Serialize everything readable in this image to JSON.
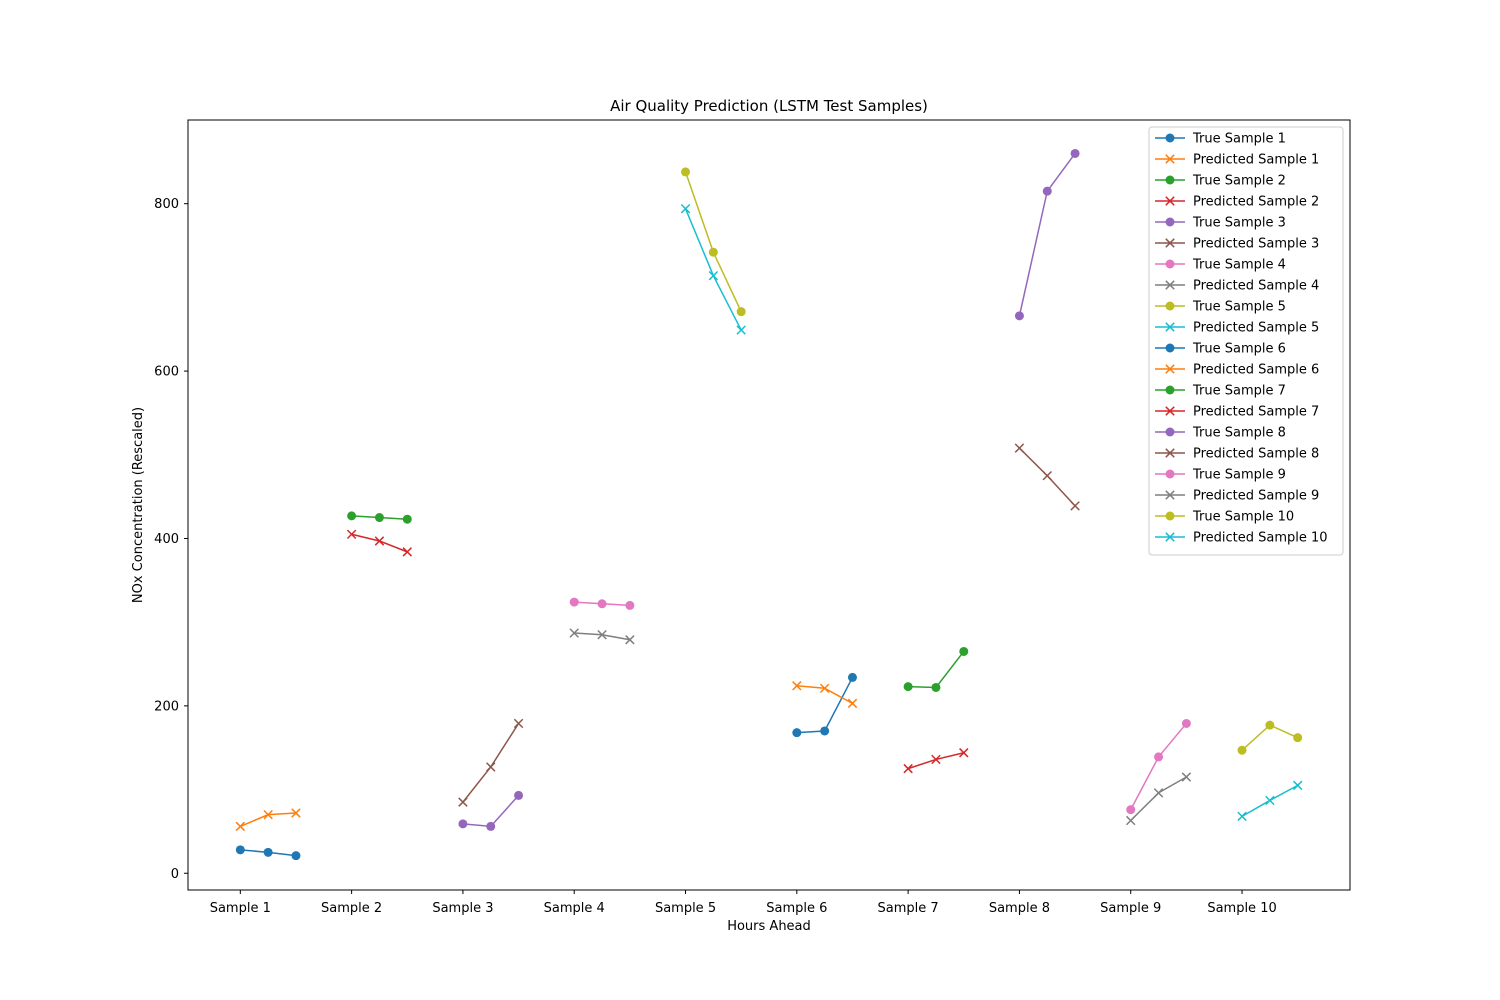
{
  "chart_data": {
    "type": "line",
    "title": "Air Quality Prediction (LSTM Test Samples)",
    "xlabel": "Hours Ahead",
    "ylabel": "NOx Concentration (Rescaled)",
    "categories": [
      "Sample 1",
      "Sample 2",
      "Sample 3",
      "Sample 4",
      "Sample 5",
      "Sample 6",
      "Sample 7",
      "Sample 8",
      "Sample 9",
      "Sample 10"
    ],
    "x_offsets": [
      0,
      0.25,
      0.5
    ],
    "xlim": [
      -0.47,
      9.97
    ],
    "ylim": [
      -20,
      900
    ],
    "yticks": [
      0,
      200,
      400,
      600,
      800
    ],
    "grid": false,
    "legend_position": "top-right",
    "series": [
      {
        "name": "True Sample 1",
        "kind": "true",
        "marker": "circle",
        "color": "#1f77b4",
        "x": [
          0,
          0.25,
          0.5
        ],
        "values": [
          28,
          25,
          21
        ]
      },
      {
        "name": "Predicted Sample 1",
        "kind": "predicted",
        "marker": "x",
        "color": "#ff7f0e",
        "x": [
          0,
          0.25,
          0.5
        ],
        "values": [
          56,
          70,
          72
        ]
      },
      {
        "name": "True Sample 2",
        "kind": "true",
        "marker": "circle",
        "color": "#2ca02c",
        "x": [
          1,
          1.25,
          1.5
        ],
        "values": [
          427,
          425,
          423
        ]
      },
      {
        "name": "Predicted Sample 2",
        "kind": "predicted",
        "marker": "x",
        "color": "#d62728",
        "x": [
          1,
          1.25,
          1.5
        ],
        "values": [
          405,
          397,
          384
        ]
      },
      {
        "name": "True Sample 3",
        "kind": "true",
        "marker": "circle",
        "color": "#9467bd",
        "x": [
          2,
          2.25,
          2.5
        ],
        "values": [
          59,
          56,
          93
        ]
      },
      {
        "name": "Predicted Sample 3",
        "kind": "predicted",
        "marker": "x",
        "color": "#8c564b",
        "x": [
          2,
          2.25,
          2.5
        ],
        "values": [
          85,
          127,
          179
        ]
      },
      {
        "name": "True Sample 4",
        "kind": "true",
        "marker": "circle",
        "color": "#e377c2",
        "x": [
          3,
          3.25,
          3.5
        ],
        "values": [
          324,
          322,
          320
        ]
      },
      {
        "name": "Predicted Sample 4",
        "kind": "predicted",
        "marker": "x",
        "color": "#7f7f7f",
        "x": [
          3,
          3.25,
          3.5
        ],
        "values": [
          287,
          285,
          279
        ]
      },
      {
        "name": "True Sample 5",
        "kind": "true",
        "marker": "circle",
        "color": "#bcbd22",
        "x": [
          4,
          4.25,
          4.5
        ],
        "values": [
          838,
          742,
          671
        ]
      },
      {
        "name": "Predicted Sample 5",
        "kind": "predicted",
        "marker": "x",
        "color": "#17becf",
        "x": [
          4,
          4.25,
          4.5
        ],
        "values": [
          794,
          714,
          649
        ]
      },
      {
        "name": "True Sample 6",
        "kind": "true",
        "marker": "circle",
        "color": "#1f77b4",
        "x": [
          5,
          5.25,
          5.5
        ],
        "values": [
          168,
          170,
          234
        ]
      },
      {
        "name": "Predicted Sample 6",
        "kind": "predicted",
        "marker": "x",
        "color": "#ff7f0e",
        "x": [
          5,
          5.25,
          5.5
        ],
        "values": [
          224,
          221,
          203
        ]
      },
      {
        "name": "True Sample 7",
        "kind": "true",
        "marker": "circle",
        "color": "#2ca02c",
        "x": [
          6,
          6.25,
          6.5
        ],
        "values": [
          223,
          222,
          265
        ]
      },
      {
        "name": "Predicted Sample 7",
        "kind": "predicted",
        "marker": "x",
        "color": "#d62728",
        "x": [
          6,
          6.25,
          6.5
        ],
        "values": [
          125,
          136,
          144
        ]
      },
      {
        "name": "True Sample 8",
        "kind": "true",
        "marker": "circle",
        "color": "#9467bd",
        "x": [
          7,
          7.25,
          7.5
        ],
        "values": [
          666,
          815,
          860
        ]
      },
      {
        "name": "Predicted Sample 8",
        "kind": "predicted",
        "marker": "x",
        "color": "#8c564b",
        "x": [
          7,
          7.25,
          7.5
        ],
        "values": [
          508,
          475,
          439
        ]
      },
      {
        "name": "True Sample 9",
        "kind": "true",
        "marker": "circle",
        "color": "#e377c2",
        "x": [
          8,
          8.25,
          8.5
        ],
        "values": [
          76,
          139,
          179
        ]
      },
      {
        "name": "Predicted Sample 9",
        "kind": "predicted",
        "marker": "x",
        "color": "#7f7f7f",
        "x": [
          8,
          8.25,
          8.5
        ],
        "values": [
          63,
          96,
          115
        ]
      },
      {
        "name": "True Sample 10",
        "kind": "true",
        "marker": "circle",
        "color": "#bcbd22",
        "x": [
          9,
          9.25,
          9.5
        ],
        "values": [
          147,
          177,
          162
        ]
      },
      {
        "name": "Predicted Sample 10",
        "kind": "predicted",
        "marker": "x",
        "color": "#17becf",
        "x": [
          9,
          9.25,
          9.5
        ],
        "values": [
          68,
          87,
          105
        ]
      }
    ]
  }
}
